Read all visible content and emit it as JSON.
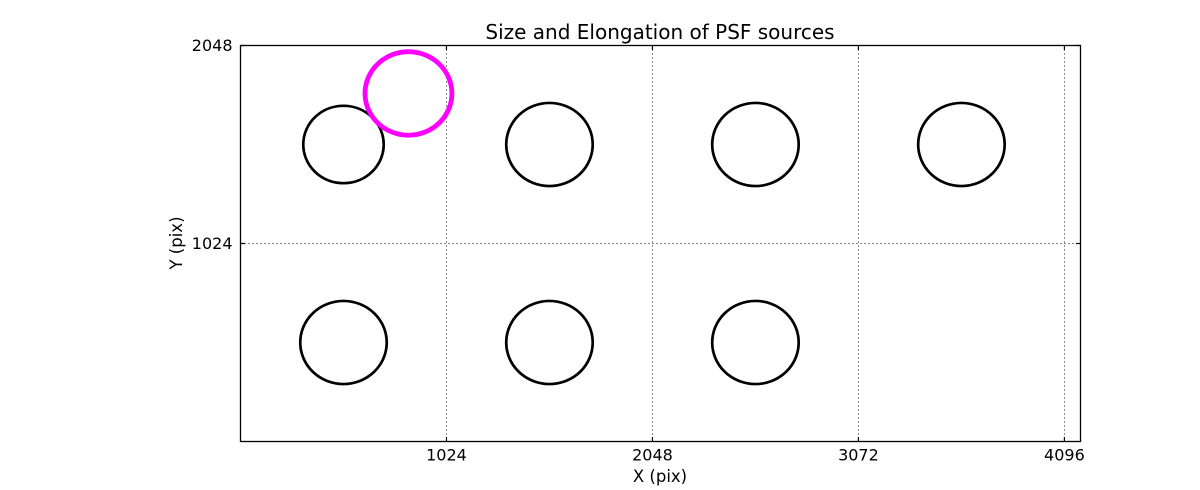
{
  "chart_data": {
    "type": "scatter",
    "title": "Size and Elongation of PSF sources",
    "xlabel": "X (pix)",
    "ylabel": "Y (pix)",
    "xlim": [
      0,
      4176
    ],
    "ylim": [
      0,
      2048
    ],
    "xticks": [
      1024,
      2048,
      3072,
      4096
    ],
    "yticks": [
      1024,
      2048
    ],
    "grid": "dotted",
    "legend": "none",
    "colors": {
      "source_stroke": "#000000",
      "outlier_stroke": "#ff00ff",
      "axis": "#000000",
      "background": "#ffffff"
    },
    "marker_note": "open circles; radius in data pixels represents PSF size",
    "sources": [
      {
        "x": 512,
        "y": 1536,
        "r": 200,
        "color": "#000000",
        "linewidth": 2.7
      },
      {
        "x": 1536,
        "y": 1536,
        "r": 215,
        "color": "#000000",
        "linewidth": 2.7
      },
      {
        "x": 2560,
        "y": 1536,
        "r": 215,
        "color": "#000000",
        "linewidth": 2.7
      },
      {
        "x": 3584,
        "y": 1536,
        "r": 215,
        "color": "#000000",
        "linewidth": 2.7
      },
      {
        "x": 512,
        "y": 512,
        "r": 215,
        "color": "#000000",
        "linewidth": 2.7
      },
      {
        "x": 1536,
        "y": 512,
        "r": 215,
        "color": "#000000",
        "linewidth": 2.7
      },
      {
        "x": 2560,
        "y": 512,
        "r": 215,
        "color": "#000000",
        "linewidth": 2.7
      },
      {
        "x": 835,
        "y": 1800,
        "r": 216,
        "color": "#ff00ff",
        "linewidth": 4.8
      }
    ]
  }
}
